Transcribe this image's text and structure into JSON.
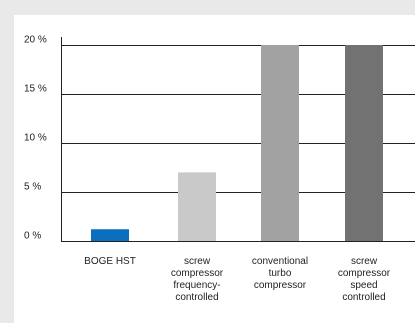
{
  "chart_data": {
    "type": "bar",
    "categories": [
      [
        "BOGE HST"
      ],
      [
        "screw",
        "compressor",
        "frequency-",
        "controlled"
      ],
      [
        "conventional",
        "turbo",
        "compressor"
      ],
      [
        "screw",
        "compressor",
        "speed",
        "controlled"
      ]
    ],
    "values": [
      1.2,
      7,
      20,
      20
    ],
    "colors": [
      "#0a6fbf",
      "#c9c9c9",
      "#a2a2a2",
      "#727272"
    ],
    "ylim": [
      0,
      20
    ],
    "yticks": [
      0,
      5,
      10,
      15,
      20
    ],
    "ytick_labels": [
      "0 %",
      "5 %",
      "10 %",
      "15 %",
      "20 %"
    ],
    "grid": true
  }
}
